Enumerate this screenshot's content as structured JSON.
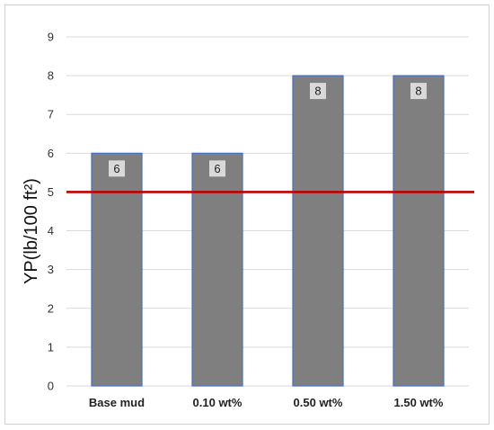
{
  "chart_data": {
    "type": "bar",
    "categories": [
      "Base mud",
      "0.10 wt%",
      "0.50 wt%",
      "1.50 wt%"
    ],
    "values": [
      6,
      6,
      8,
      8
    ],
    "data_labels": [
      "6",
      "6",
      "8",
      "8"
    ],
    "title": "",
    "xlabel": "",
    "ylabel": "YP(lb/100 ft²)",
    "ylim": [
      0,
      9
    ],
    "yticks": [
      "0",
      "1",
      "2",
      "3",
      "4",
      "5",
      "6",
      "7",
      "8",
      "9"
    ],
    "grid": true,
    "reference_line": {
      "value": 5,
      "color": "#c00000"
    },
    "bar_color": "#7f7f7f",
    "bar_edge_color": "#4472c4"
  }
}
